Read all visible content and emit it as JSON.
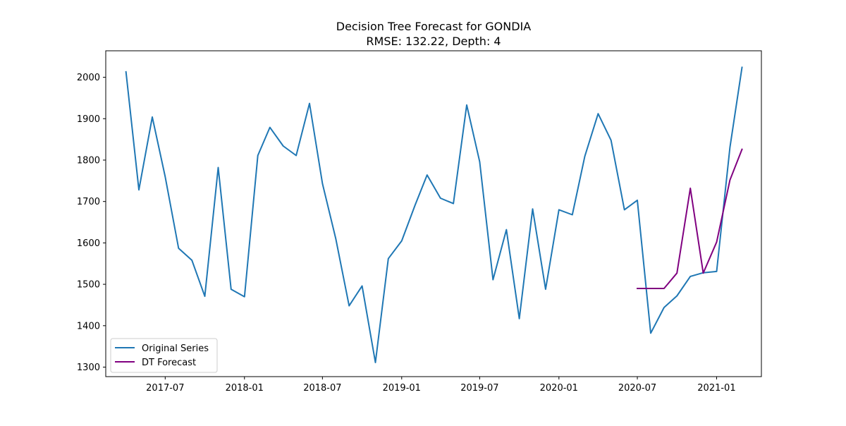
{
  "chart_data": {
    "type": "line",
    "title": "Decision Tree Forecast for GONDIA",
    "subtitle": "RMSE: 132.22, Depth: 4",
    "xlabel": "",
    "ylabel": "",
    "x_tick_labels": [
      "2017-07",
      "2018-01",
      "2018-07",
      "2019-01",
      "2019-07",
      "2020-01",
      "2020-07",
      "2021-01"
    ],
    "x_tick_dates": [
      "2017-07-01",
      "2018-01-01",
      "2018-07-01",
      "2019-01-01",
      "2019-07-01",
      "2020-01-01",
      "2020-07-01",
      "2021-01-01"
    ],
    "y_ticks": [
      1300,
      1400,
      1500,
      1600,
      1700,
      1800,
      1900,
      2000
    ],
    "xlim": [
      "2017-02-13",
      "2021-04-15"
    ],
    "ylim": [
      1277,
      2064
    ],
    "grid": false,
    "legend_position": "lower-left",
    "series": [
      {
        "name": "Original Series",
        "color": "#1f77b4",
        "x": [
          "2017-04-01",
          "2017-05-01",
          "2017-06-01",
          "2017-07-01",
          "2017-08-01",
          "2017-09-01",
          "2017-10-01",
          "2017-11-01",
          "2017-12-01",
          "2018-01-01",
          "2018-02-01",
          "2018-03-01",
          "2018-04-01",
          "2018-05-01",
          "2018-06-01",
          "2018-07-01",
          "2018-08-01",
          "2018-09-01",
          "2018-10-01",
          "2018-11-01",
          "2018-12-01",
          "2019-01-01",
          "2019-02-01",
          "2019-03-01",
          "2019-04-01",
          "2019-05-01",
          "2019-06-01",
          "2019-07-01",
          "2019-08-01",
          "2019-09-01",
          "2019-10-01",
          "2019-11-01",
          "2019-12-01",
          "2020-01-01",
          "2020-02-01",
          "2020-03-01",
          "2020-04-01",
          "2020-05-01",
          "2020-06-01",
          "2020-07-01",
          "2020-08-01",
          "2020-09-01",
          "2020-10-01",
          "2020-11-01",
          "2020-12-01",
          "2021-01-01",
          "2021-02-01",
          "2021-03-01"
        ],
        "values": [
          2013,
          1728,
          1904,
          1760,
          1587,
          1558,
          1471,
          1782,
          1488,
          1470,
          1811,
          1879,
          1834,
          1811,
          1937,
          1743,
          1610,
          1448,
          1496,
          1311,
          1562,
          1605,
          1691,
          1764,
          1708,
          1695,
          1933,
          1796,
          1511,
          1632,
          1417,
          1682,
          1488,
          1680,
          1668,
          1809,
          1912,
          1848,
          1680,
          1703,
          1382,
          1444,
          1472,
          1519,
          1528,
          1531,
          1831,
          2024
        ]
      },
      {
        "name": "DT Forecast",
        "color": "#800080",
        "x": [
          "2020-07-01",
          "2020-08-01",
          "2020-09-01",
          "2020-10-01",
          "2020-11-01",
          "2020-12-01",
          "2021-01-01",
          "2021-02-01",
          "2021-03-01"
        ],
        "values": [
          1490,
          1490,
          1490,
          1527,
          1732,
          1527,
          1602,
          1752,
          1826
        ]
      }
    ]
  }
}
